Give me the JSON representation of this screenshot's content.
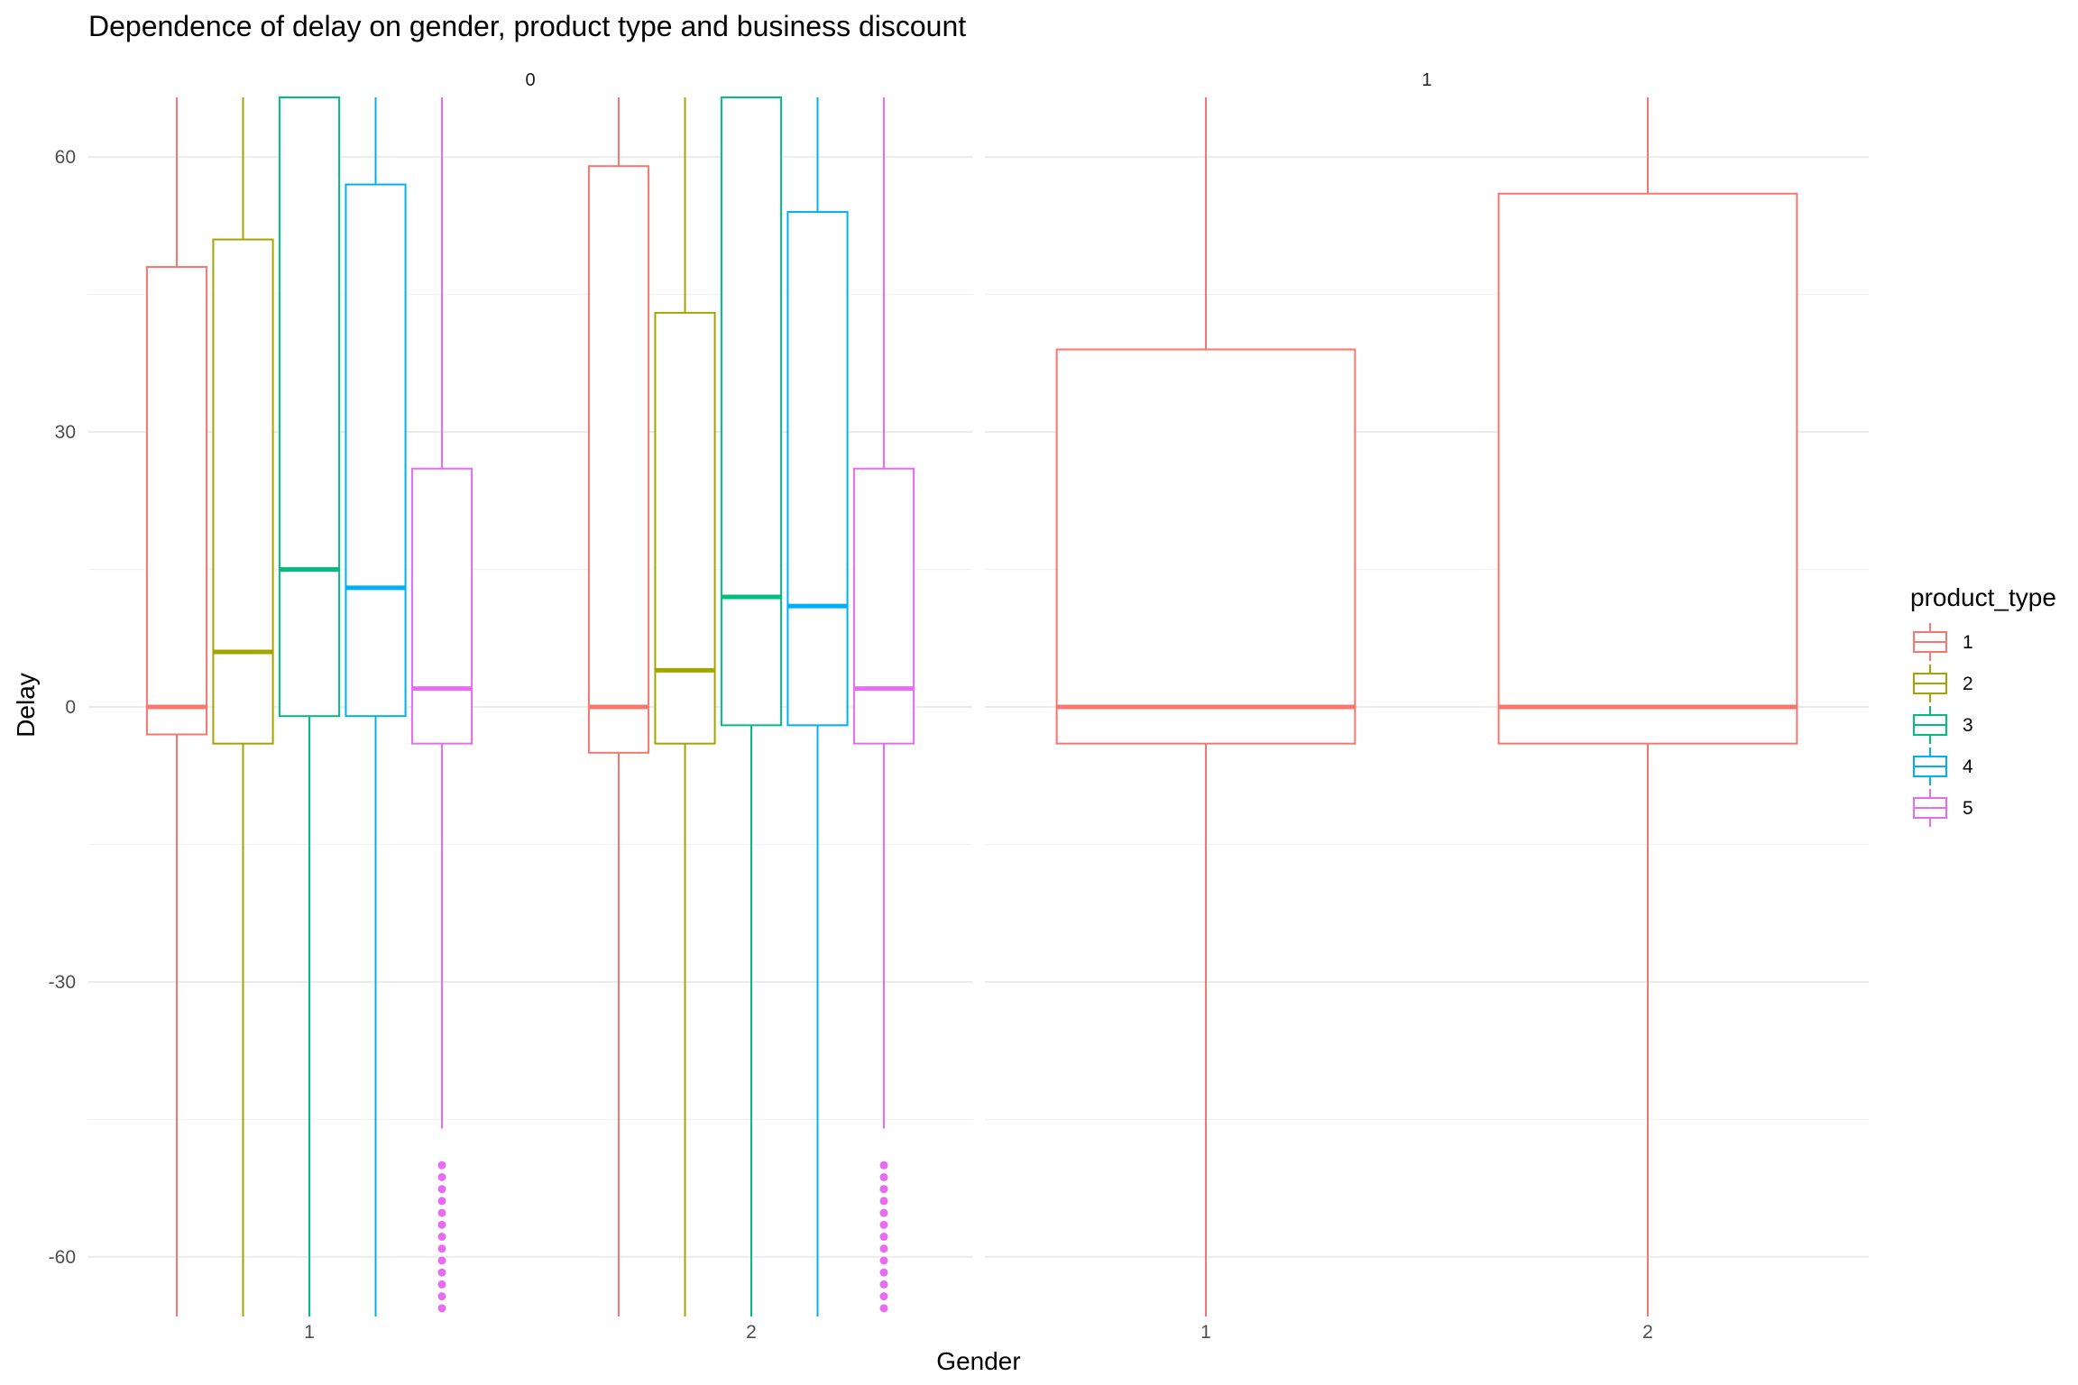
{
  "chart_data": {
    "type": "boxplot",
    "title": "Dependence of delay on gender, product type and business discount",
    "xlabel": "Gender",
    "ylabel": "Delay",
    "ylim": [
      -66.5,
      66.5
    ],
    "y_ticks": [
      -60,
      -30,
      0,
      30,
      60
    ],
    "grid": true,
    "legend": {
      "title": "product_type",
      "position": "right",
      "entries": [
        {
          "label": "1",
          "color": "#F8766D"
        },
        {
          "label": "2",
          "color": "#A3A500"
        },
        {
          "label": "3",
          "color": "#00BF7D"
        },
        {
          "label": "4",
          "color": "#00B0F6"
        },
        {
          "label": "5",
          "color": "#E76BF3"
        }
      ]
    },
    "facets": [
      {
        "label": "0",
        "categories": [
          "1",
          "2"
        ],
        "groups": [
          {
            "gender": "1",
            "boxes": [
              {
                "product_type": "1",
                "low": -66.5,
                "q1": -3,
                "median": 0,
                "q3": 48,
                "high": 66.5
              },
              {
                "product_type": "2",
                "low": -66.5,
                "q1": -4,
                "median": 6,
                "q3": 51,
                "high": 66.5
              },
              {
                "product_type": "3",
                "low": -66.5,
                "q1": -1,
                "median": 15,
                "q3": 66.5,
                "high": 66.5
              },
              {
                "product_type": "4",
                "low": -66.5,
                "q1": -1,
                "median": 13,
                "q3": 57,
                "high": 66.5
              },
              {
                "product_type": "5",
                "low": -46,
                "q1": -4,
                "median": 2,
                "q3": 26,
                "high": 66.5,
                "outliers": [
                  -50,
                  -51.3,
                  -52.6,
                  -53.9,
                  -55.2,
                  -56.5,
                  -57.8,
                  -59.1,
                  -60.4,
                  -61.7,
                  -63,
                  -64.3,
                  -65.6
                ]
              }
            ]
          },
          {
            "gender": "2",
            "boxes": [
              {
                "product_type": "1",
                "low": -66.5,
                "q1": -5,
                "median": 0,
                "q3": 59,
                "high": 66.5
              },
              {
                "product_type": "2",
                "low": -66.5,
                "q1": -4,
                "median": 4,
                "q3": 43,
                "high": 66.5
              },
              {
                "product_type": "3",
                "low": -66.5,
                "q1": -2,
                "median": 12,
                "q3": 66.5,
                "high": 66.5
              },
              {
                "product_type": "4",
                "low": -66.5,
                "q1": -2,
                "median": 11,
                "q3": 54,
                "high": 66.5
              },
              {
                "product_type": "5",
                "low": -46,
                "q1": -4,
                "median": 2,
                "q3": 26,
                "high": 66.5,
                "outliers": [
                  -50,
                  -51.3,
                  -52.6,
                  -53.9,
                  -55.2,
                  -56.5,
                  -57.8,
                  -59.1,
                  -60.4,
                  -61.7,
                  -63,
                  -64.3,
                  -65.6
                ]
              }
            ]
          }
        ]
      },
      {
        "label": "1",
        "categories": [
          "1",
          "2"
        ],
        "groups": [
          {
            "gender": "1",
            "boxes": [
              {
                "product_type": "1",
                "low": -66.5,
                "q1": -4,
                "median": 0,
                "q3": 39,
                "high": 66.5
              }
            ]
          },
          {
            "gender": "2",
            "boxes": [
              {
                "product_type": "1",
                "low": -66.5,
                "q1": -4,
                "median": 0,
                "q3": 56,
                "high": 66.5
              }
            ]
          }
        ]
      }
    ]
  }
}
